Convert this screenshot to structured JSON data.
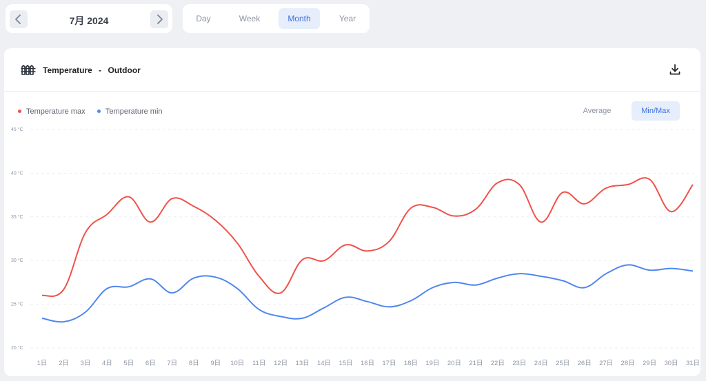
{
  "date_nav": {
    "label": "7月 2024",
    "prev_icon": "chevron-left-icon",
    "next_icon": "chevron-right-icon"
  },
  "range_tabs": [
    {
      "label": "Day",
      "active": false
    },
    {
      "label": "Week",
      "active": false
    },
    {
      "label": "Month",
      "active": true
    },
    {
      "label": "Year",
      "active": false
    }
  ],
  "panel": {
    "title": "Temperature",
    "separator": "-",
    "subtitle": "Outdoor",
    "icon": "fence-icon",
    "download_icon": "download-icon"
  },
  "modes": [
    {
      "label": "Average",
      "active": false
    },
    {
      "label": "Min/Max",
      "active": true
    }
  ],
  "colors": {
    "max": "#f0514a",
    "min": "#4f86f0",
    "accent": "#3d6fe0"
  },
  "chart_data": {
    "type": "line",
    "y_tick_labels": [
      "45 °C",
      "40 °C",
      "35 °C",
      "30 °C",
      "25 °C",
      "20 °C"
    ],
    "y_ticks": [
      45,
      40,
      35,
      30,
      25,
      20
    ],
    "ylim": [
      20,
      45
    ],
    "grid": true,
    "legend_position": "top-left",
    "categories": [
      "1日",
      "2日",
      "3日",
      "4日",
      "5日",
      "6日",
      "7日",
      "8日",
      "9日",
      "10日",
      "11日",
      "12日",
      "13日",
      "14日",
      "15日",
      "16日",
      "17日",
      "18日",
      "19日",
      "20日",
      "21日",
      "22日",
      "23日",
      "24日",
      "25日",
      "26日",
      "27日",
      "28日",
      "29日",
      "30日",
      "31日"
    ],
    "series": [
      {
        "name": "Temperature max",
        "values": [
          26.0,
          26.7,
          33.2,
          35.3,
          37.3,
          34.4,
          37.1,
          36.2,
          34.6,
          32.0,
          28.2,
          26.3,
          30.1,
          30.0,
          31.8,
          31.1,
          32.2,
          36.0,
          36.1,
          35.1,
          35.9,
          38.9,
          38.7,
          34.4,
          37.8,
          36.5,
          38.3,
          38.7,
          39.3,
          35.6,
          38.7
        ]
      },
      {
        "name": "Temperature min",
        "values": [
          23.4,
          23.0,
          24.1,
          26.8,
          27.0,
          27.9,
          26.3,
          28.0,
          28.1,
          26.8,
          24.4,
          23.6,
          23.4,
          24.6,
          25.8,
          25.3,
          24.7,
          25.4,
          26.9,
          27.5,
          27.2,
          28.0,
          28.5,
          28.2,
          27.7,
          26.9,
          28.5,
          29.5,
          28.9,
          29.1,
          28.8
        ]
      }
    ]
  }
}
